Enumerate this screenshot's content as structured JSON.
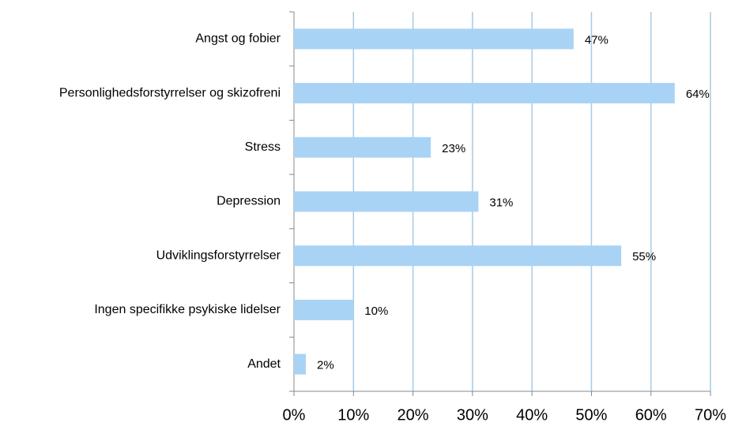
{
  "chart_data": {
    "type": "barh",
    "categories": [
      "Angst og fobier",
      "Personlighedsforstyrrelser og skizofreni",
      "Stress",
      "Depression",
      "Udviklingsforstyrrelser",
      "Ingen specifikke psykiske lidelser",
      "Andet"
    ],
    "values": [
      47,
      64,
      23,
      31,
      55,
      10,
      2
    ],
    "value_labels": [
      "47%",
      "64%",
      "23%",
      "31%",
      "55%",
      "10%",
      "2%"
    ],
    "color": "#a9d3f5",
    "xlim": [
      0,
      70
    ],
    "xticks": [
      {
        "value": 0,
        "label": "0%"
      },
      {
        "value": 10,
        "label": "10%"
      },
      {
        "value": 20,
        "label": "20%"
      },
      {
        "value": 30,
        "label": "30%"
      },
      {
        "value": 40,
        "label": "40%"
      },
      {
        "value": 50,
        "label": "50%"
      },
      {
        "value": 60,
        "label": "60%"
      },
      {
        "value": 70,
        "label": "70%"
      }
    ],
    "grid": true
  }
}
